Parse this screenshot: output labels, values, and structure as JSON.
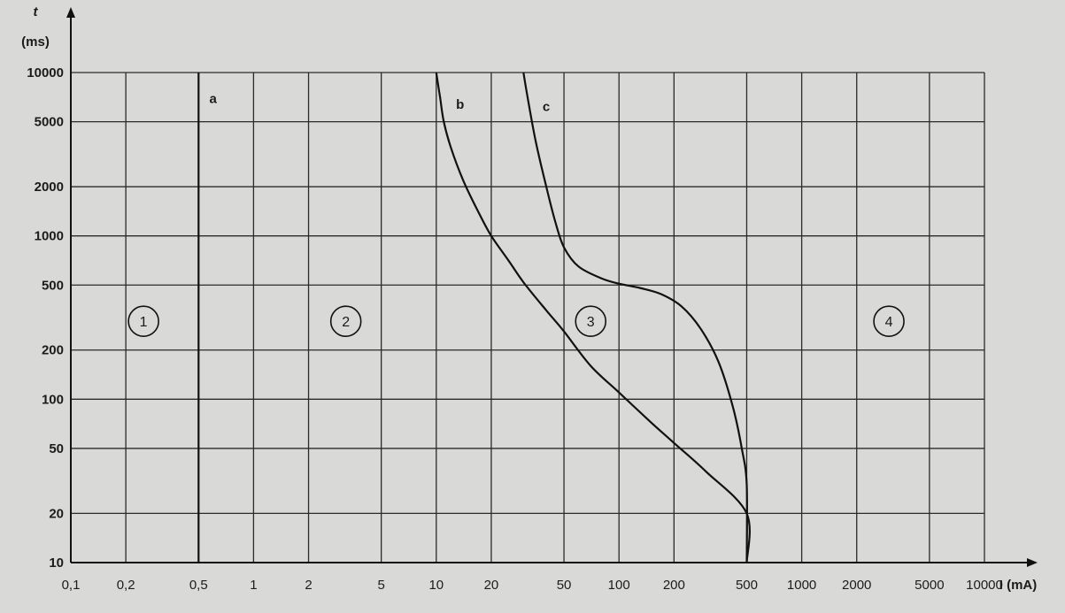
{
  "chart_data": {
    "type": "line",
    "x_scale": "log",
    "y_scale": "log",
    "grid": true,
    "x_axis": {
      "label": "I (mA)",
      "ticks": [
        0.1,
        0.2,
        0.5,
        1,
        2,
        5,
        10,
        20,
        50,
        100,
        200,
        500,
        1000,
        2000,
        5000,
        10000
      ],
      "tick_labels": [
        "0,1",
        "0,2",
        "0,5",
        "1",
        "2",
        "5",
        "10",
        "20",
        "50",
        "100",
        "200",
        "500",
        "1000",
        "2000",
        "5000",
        "10000"
      ],
      "range": [
        0.1,
        10000
      ]
    },
    "y_axis": {
      "label_symbol": "t",
      "label_unit": "(ms)",
      "ticks": [
        10,
        20,
        50,
        100,
        200,
        500,
        1000,
        2000,
        5000,
        10000
      ],
      "tick_labels": [
        "10",
        "20",
        "50",
        "100",
        "200",
        "500",
        "1000",
        "2000",
        "5000",
        "10000"
      ],
      "range": [
        10,
        10000
      ]
    },
    "series": [
      {
        "name": "a",
        "x": [
          0.5,
          0.5
        ],
        "y": [
          10,
          10000
        ]
      },
      {
        "name": "b",
        "x": [
          10,
          10.5,
          11,
          12,
          14,
          17,
          20,
          25,
          30,
          40,
          50,
          70,
          100,
          150,
          200,
          300,
          500,
          500
        ],
        "y": [
          10000,
          7000,
          5000,
          3500,
          2200,
          1400,
          1000,
          700,
          520,
          350,
          260,
          160,
          110,
          72,
          54,
          36,
          20,
          10
        ]
      },
      {
        "name": "c",
        "x": [
          30,
          32,
          35,
          40,
          45,
          50,
          60,
          80,
          100,
          130,
          170,
          220,
          280,
          350,
          420,
          470,
          500,
          500
        ],
        "y": [
          10000,
          6500,
          3800,
          2000,
          1200,
          850,
          650,
          550,
          510,
          480,
          440,
          370,
          270,
          170,
          90,
          50,
          30,
          10
        ]
      }
    ],
    "annotations": [
      "a",
      "b",
      "c"
    ],
    "zones": [
      {
        "label": "1",
        "x": 0.25,
        "y": 300
      },
      {
        "label": "2",
        "x": 3.2,
        "y": 300
      },
      {
        "label": "3",
        "x": 70,
        "y": 300
      },
      {
        "label": "4",
        "x": 3000,
        "y": 300
      }
    ]
  }
}
